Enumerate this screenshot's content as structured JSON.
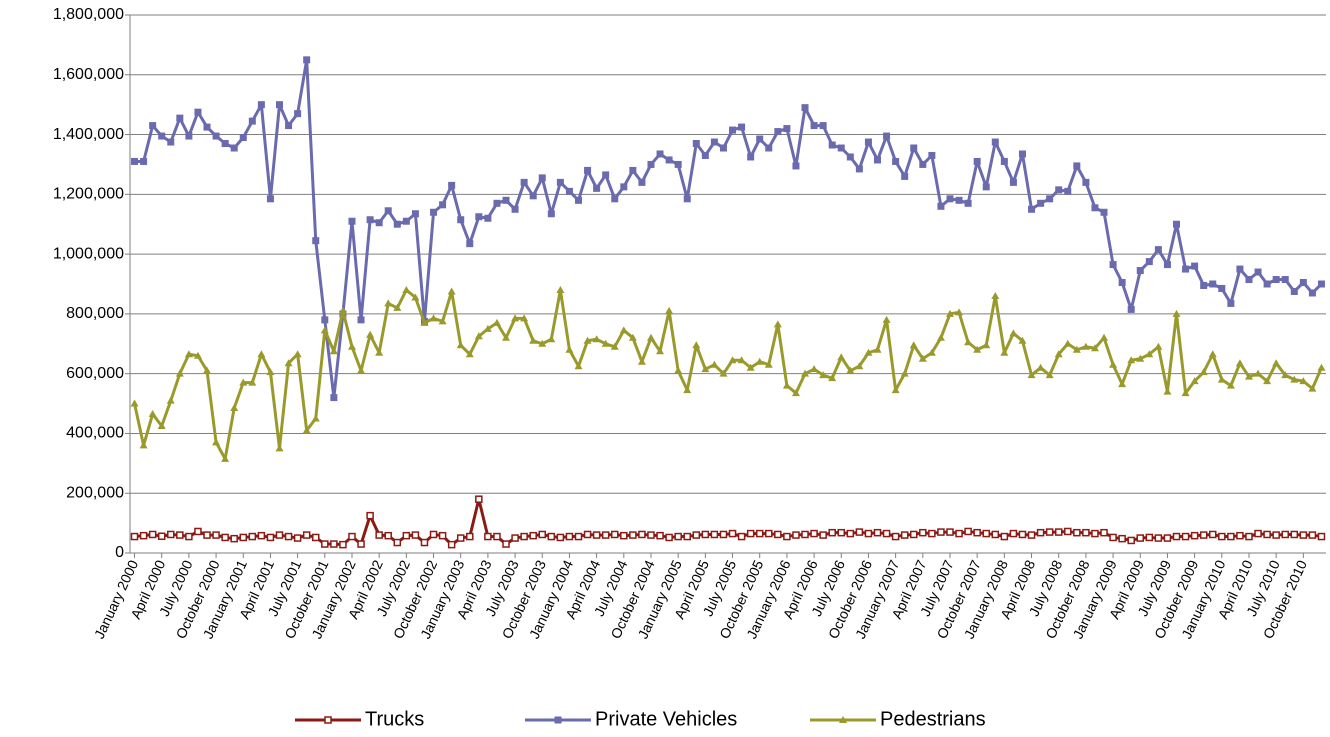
{
  "chart_data": {
    "type": "line",
    "categories": [
      "January 2000",
      null,
      null,
      "April 2000",
      null,
      null,
      "July 2000",
      null,
      null,
      "October 2000",
      null,
      null,
      "January 2001",
      null,
      null,
      "April 2001",
      null,
      null,
      "July 2001",
      null,
      null,
      "October 2001",
      null,
      null,
      "January 2002",
      null,
      null,
      "April 2002",
      null,
      null,
      "July 2002",
      null,
      null,
      "October 2002",
      null,
      null,
      "January 2003",
      null,
      null,
      "April 2003",
      null,
      null,
      "July 2003",
      null,
      null,
      "October 2003",
      null,
      null,
      "January 2004",
      null,
      null,
      "April 2004",
      null,
      null,
      "July 2004",
      null,
      null,
      "October 2004",
      null,
      null,
      "January 2005",
      null,
      null,
      "April 2005",
      null,
      null,
      "July 2005",
      null,
      null,
      "October 2005",
      null,
      null,
      "January 2006",
      null,
      null,
      "April 2006",
      null,
      null,
      "July 2006",
      null,
      null,
      "October 2006",
      null,
      null,
      "January 2007",
      null,
      null,
      "April 2007",
      null,
      null,
      "July 2007",
      null,
      null,
      "October 2007",
      null,
      null,
      "January 2008",
      null,
      null,
      "April 2008",
      null,
      null,
      "July 2008",
      null,
      null,
      "October 2008",
      null,
      null,
      "January 2009",
      null,
      null,
      "April 2009",
      null,
      null,
      "July 2009",
      null,
      null,
      "October 2009",
      null,
      null,
      "January 2010",
      null,
      null,
      "April 2010",
      null,
      null,
      "July 2010",
      null,
      null,
      "October 2010",
      null,
      null
    ],
    "series": [
      {
        "name": "Trucks",
        "color": "#8b1a14",
        "marker": "square-open",
        "values": [
          55000,
          58000,
          62000,
          56000,
          62000,
          60000,
          55000,
          72000,
          60000,
          60000,
          52000,
          48000,
          52000,
          55000,
          58000,
          52000,
          60000,
          55000,
          50000,
          60000,
          52000,
          30000,
          30000,
          28000,
          55000,
          30000,
          125000,
          60000,
          58000,
          35000,
          58000,
          60000,
          35000,
          62000,
          58000,
          28000,
          50000,
          55000,
          180000,
          55000,
          55000,
          30000,
          50000,
          55000,
          58000,
          62000,
          55000,
          52000,
          55000,
          55000,
          62000,
          60000,
          60000,
          62000,
          58000,
          60000,
          62000,
          60000,
          58000,
          52000,
          55000,
          55000,
          60000,
          62000,
          62000,
          62000,
          65000,
          55000,
          65000,
          65000,
          65000,
          62000,
          55000,
          60000,
          62000,
          65000,
          60000,
          68000,
          68000,
          65000,
          70000,
          65000,
          68000,
          65000,
          55000,
          60000,
          62000,
          68000,
          65000,
          70000,
          70000,
          65000,
          72000,
          68000,
          65000,
          62000,
          55000,
          65000,
          62000,
          60000,
          68000,
          70000,
          70000,
          72000,
          68000,
          68000,
          65000,
          68000,
          52000,
          48000,
          42000,
          50000,
          52000,
          50000,
          50000,
          55000,
          55000,
          58000,
          60000,
          62000,
          55000,
          55000,
          58000,
          55000,
          65000,
          62000,
          60000,
          62000,
          62000,
          60000,
          60000,
          55000
        ]
      },
      {
        "name": "Private Vehicles",
        "color": "#6a6aaf",
        "marker": "square",
        "values": [
          1310000,
          1310000,
          1430000,
          1395000,
          1375000,
          1455000,
          1395000,
          1475000,
          1425000,
          1395000,
          1370000,
          1355000,
          1390000,
          1445000,
          1500000,
          1185000,
          1500000,
          1430000,
          1470000,
          1650000,
          1045000,
          780000,
          520000,
          800000,
          1110000,
          780000,
          1115000,
          1105000,
          1145000,
          1100000,
          1110000,
          1135000,
          775000,
          1140000,
          1165000,
          1230000,
          1115000,
          1035000,
          1125000,
          1120000,
          1170000,
          1180000,
          1150000,
          1240000,
          1195000,
          1255000,
          1135000,
          1240000,
          1210000,
          1180000,
          1280000,
          1220000,
          1265000,
          1185000,
          1225000,
          1280000,
          1240000,
          1300000,
          1335000,
          1315000,
          1300000,
          1185000,
          1370000,
          1330000,
          1375000,
          1355000,
          1415000,
          1425000,
          1325000,
          1385000,
          1355000,
          1410000,
          1420000,
          1295000,
          1490000,
          1430000,
          1430000,
          1365000,
          1355000,
          1325000,
          1285000,
          1375000,
          1315000,
          1395000,
          1310000,
          1260000,
          1355000,
          1300000,
          1330000,
          1160000,
          1185000,
          1180000,
          1170000,
          1310000,
          1225000,
          1375000,
          1310000,
          1240000,
          1335000,
          1150000,
          1170000,
          1185000,
          1215000,
          1210000,
          1295000,
          1240000,
          1155000,
          1140000,
          965000,
          905000,
          815000,
          945000,
          975000,
          1015000,
          965000,
          1100000,
          950000,
          960000,
          895000,
          900000,
          885000,
          835000,
          950000,
          915000,
          940000,
          900000,
          915000,
          915000,
          875000,
          905000,
          870000,
          900000
        ]
      },
      {
        "name": "Pedestrians",
        "color": "#9a9a2c",
        "marker": "triangle",
        "values": [
          500000,
          360000,
          465000,
          425000,
          510000,
          600000,
          665000,
          660000,
          610000,
          370000,
          315000,
          485000,
          570000,
          570000,
          665000,
          605000,
          350000,
          635000,
          665000,
          410000,
          450000,
          745000,
          675000,
          810000,
          690000,
          610000,
          730000,
          670000,
          835000,
          820000,
          880000,
          855000,
          770000,
          785000,
          775000,
          875000,
          695000,
          665000,
          725000,
          750000,
          770000,
          720000,
          785000,
          785000,
          710000,
          700000,
          715000,
          880000,
          680000,
          625000,
          710000,
          715000,
          700000,
          690000,
          745000,
          720000,
          640000,
          720000,
          675000,
          810000,
          610000,
          545000,
          695000,
          615000,
          630000,
          600000,
          645000,
          645000,
          620000,
          640000,
          630000,
          765000,
          560000,
          535000,
          600000,
          615000,
          595000,
          585000,
          655000,
          610000,
          625000,
          670000,
          680000,
          780000,
          545000,
          600000,
          695000,
          650000,
          670000,
          720000,
          800000,
          805000,
          705000,
          680000,
          695000,
          860000,
          670000,
          735000,
          710000,
          595000,
          620000,
          595000,
          665000,
          700000,
          680000,
          690000,
          685000,
          720000,
          630000,
          565000,
          645000,
          650000,
          665000,
          690000,
          540000,
          800000,
          535000,
          575000,
          605000,
          665000,
          580000,
          560000,
          635000,
          590000,
          600000,
          575000,
          635000,
          595000,
          580000,
          575000,
          550000,
          620000
        ]
      }
    ],
    "ylim": [
      0,
      1800000
    ],
    "yticks": [
      0,
      {
        "value": 200000,
        "label": "200,000"
      },
      {
        "value": 400000,
        "label": "400,000"
      },
      {
        "value": 600000,
        "label": "600,000"
      },
      {
        "value": 800000,
        "label": "800,000"
      },
      {
        "value": 1000000,
        "label": "1,000,000"
      },
      {
        "value": 1200000,
        "label": "1,200,000"
      },
      {
        "value": 1400000,
        "label": "1,400,000"
      },
      {
        "value": 1600000,
        "label": "1,600,000"
      },
      {
        "value": 1800000,
        "label": "1,800,000"
      }
    ],
    "grid": true,
    "legend": "bottom"
  }
}
